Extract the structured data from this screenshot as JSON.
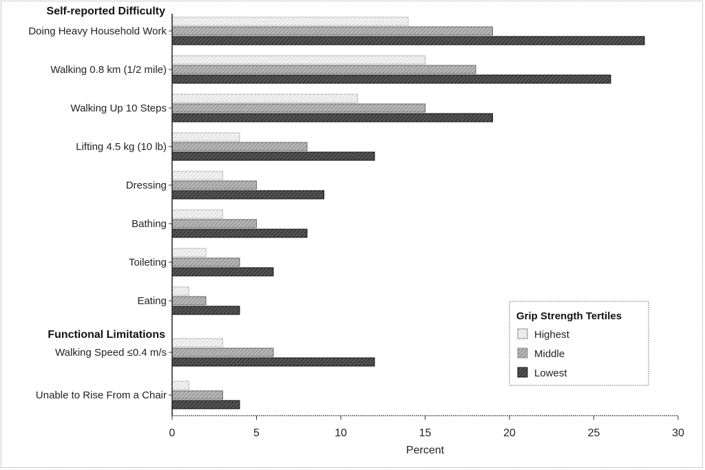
{
  "chart_data": {
    "type": "bar",
    "orientation": "horizontal",
    "title": "",
    "xlabel": "Percent",
    "ylabel": "",
    "xlim": [
      0,
      30
    ],
    "xticks": [
      0,
      5,
      10,
      15,
      20,
      25,
      30
    ],
    "grid": false,
    "sections": [
      {
        "label": "Self-reported Difficulty",
        "start_index": 0
      },
      {
        "label": "Functional Limitations",
        "start_index": 8
      }
    ],
    "categories": [
      "Doing Heavy Household Work",
      "Walking 0.8 km (1/2 mile)",
      "Walking Up 10 Steps",
      "Lifting 4.5 kg (10 lb)",
      "Dressing",
      "Bathing",
      "Toileting",
      "Eating",
      "Walking Speed ≤0.4 m/s",
      "Unable to Rise From a Chair"
    ],
    "series": [
      {
        "name": "Highest",
        "color": "#e6e6e6",
        "values": [
          14,
          15,
          11,
          4,
          3,
          3,
          2,
          1,
          3,
          1
        ]
      },
      {
        "name": "Middle",
        "color": "#9a9a9a",
        "values": [
          19,
          18,
          15,
          8,
          5,
          5,
          4,
          2,
          6,
          3
        ]
      },
      {
        "name": "Lowest",
        "color": "#2a2a2a",
        "values": [
          28,
          26,
          19,
          12,
          9,
          8,
          6,
          4,
          12,
          4
        ]
      }
    ],
    "legend": {
      "title": "Grip Strength Tertiles",
      "placement": "bottom-right"
    }
  }
}
